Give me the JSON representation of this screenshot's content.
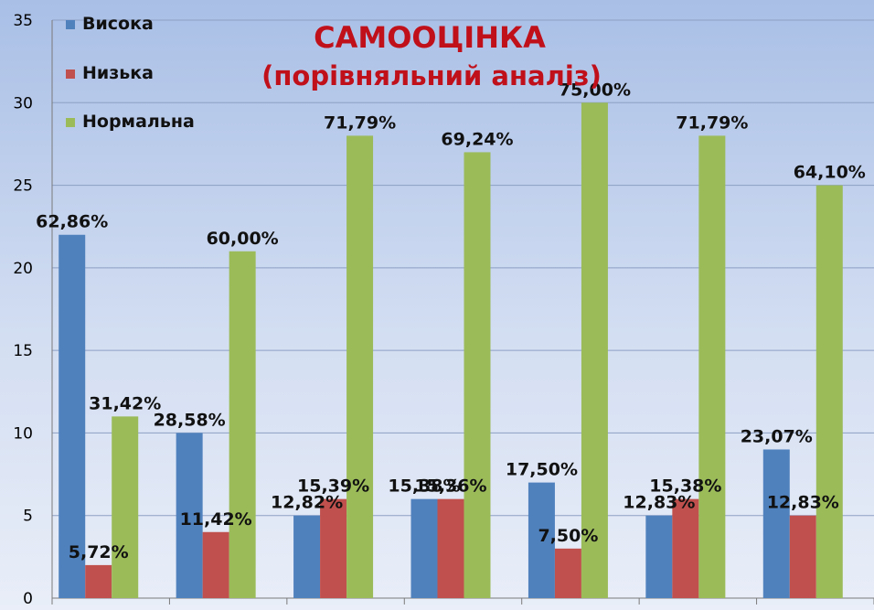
{
  "chart_data": {
    "type": "bar",
    "title": "САМООЦІНКА",
    "subtitle": "(порівняльний аналіз)",
    "categories": [
      "",
      "",
      "",
      "",
      "",
      "",
      ""
    ],
    "ylim": [
      0,
      35
    ],
    "yticks": [
      0,
      5,
      10,
      15,
      20,
      25,
      30,
      35
    ],
    "grid": true,
    "legend_position": "top-left",
    "series": [
      {
        "name": "Висока",
        "color": "#4f81bd",
        "values": [
          22,
          10,
          5,
          6,
          7,
          5,
          9
        ],
        "labels": [
          "62,86%",
          "28,58%",
          "12,82%",
          "15,38%",
          "17,50%",
          "12,83%",
          "23,07%"
        ]
      },
      {
        "name": "Низька",
        "color": "#c0504d",
        "values": [
          2,
          4,
          6,
          6,
          3,
          6,
          5
        ],
        "labels": [
          "5,72%",
          "11,42%",
          "15,39%",
          "15,36%",
          "7,50%",
          "15,38%",
          "12,83%"
        ]
      },
      {
        "name": "Нормальна",
        "color": "#9bbb59",
        "values": [
          11,
          21,
          28,
          27,
          30,
          28,
          25
        ],
        "labels": [
          "31,42%",
          "60,00%",
          "71,79%",
          "69,24%",
          "75,00%",
          "71,79%",
          "64,10%"
        ]
      }
    ]
  }
}
